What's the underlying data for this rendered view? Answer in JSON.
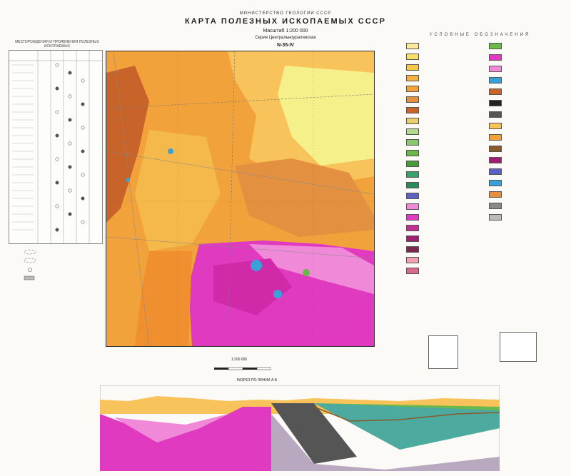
{
  "header": {
    "ministry": "МИНИСТЕРСТВО ГЕОЛОГИИ СССР",
    "title": "КАРТА ПОЛЕЗНЫХ ИСКОПАЕМЫХ СССР",
    "scale": "Масштаб 1:200 000",
    "series": "Серия Центральноуралинская",
    "sheet": "N-35-IV"
  },
  "legend": {
    "title": "УСЛОВНЫЕ ОБОЗНАЧЕНИЯ"
  },
  "left_panel": {
    "title": "МЕСТОРОЖДЕНИЯ И ПРОЯВЛЕНИЯ ПОЛЕЗНЫХ ИСКОПАЕМЫХ"
  },
  "map": {
    "scale_text": "1:200 000"
  },
  "section": {
    "title": "РАЗРЕЗ ПО ЛИНИИ А-Б"
  },
  "colors": {
    "orange": "#f2a23a",
    "light_orange": "#f7c35a",
    "yellow": "#f6f08a",
    "brown": "#c8642a",
    "magenta": "#e03ac0",
    "pink": "#f08ad8",
    "blue": "#3aa0d8",
    "green": "#6ab84a"
  }
}
